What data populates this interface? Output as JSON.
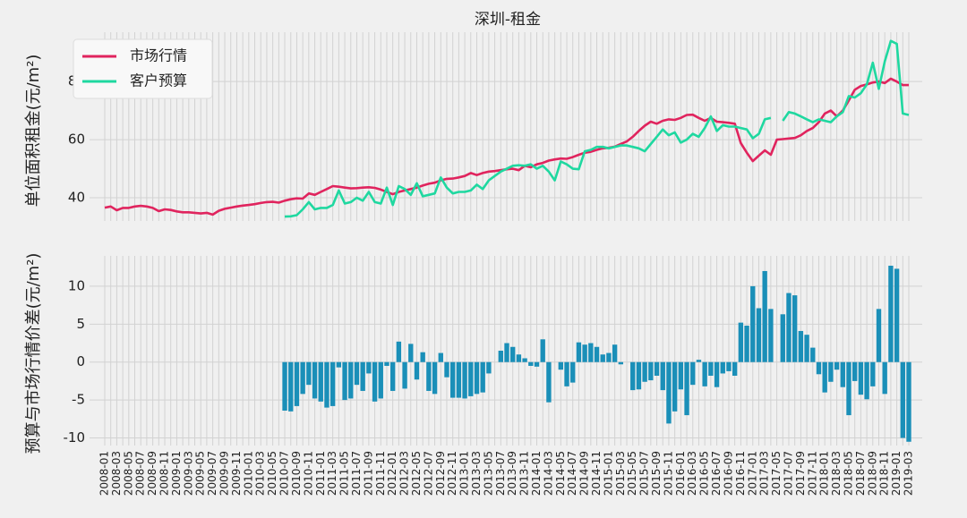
{
  "chart_data": [
    {
      "type": "line",
      "title": "深圳-租金",
      "ylabel": "单位面积租金(元/m²)",
      "ylim": [
        32,
        97
      ],
      "yticks": [
        40,
        60,
        80
      ],
      "grid": true,
      "legend": "upper left",
      "series": [
        {
          "name": "市场行情",
          "color": "#e0245e",
          "values": [
            36.6,
            37,
            35.7,
            36.5,
            36.5,
            37,
            37.2,
            37,
            36.5,
            35.4,
            36,
            35.8,
            35.3,
            35,
            35,
            34.8,
            34.6,
            34.8,
            34.2,
            35.5,
            36.2,
            36.6,
            37,
            37.3,
            37.5,
            37.8,
            38.2,
            38.5,
            38.6,
            38.3,
            39,
            39.5,
            39.8,
            39.7,
            41.5,
            41,
            42,
            43,
            44,
            43.8,
            43.5,
            43.2,
            43.3,
            43.5,
            43.6,
            43.4,
            42.8,
            42,
            41.2,
            42,
            42.5,
            43,
            43.5,
            44.2,
            44.8,
            45.2,
            46,
            46.5,
            46.6,
            47,
            47.5,
            48.5,
            47.8,
            48.5,
            49,
            49.2,
            49.5,
            49.8,
            50,
            49.5,
            51,
            50.5,
            51.5,
            52,
            52.8,
            53.2,
            53.5,
            53.4,
            54,
            54.8,
            55.5,
            55.8,
            56.5,
            57,
            57.2,
            57.6,
            58.5,
            59.4,
            61,
            63,
            64.8,
            66.2,
            65.5,
            66.5,
            67,
            66.8,
            67.5,
            68.5,
            68.6,
            67.5,
            66.5,
            67.5,
            66.2,
            66,
            65.8,
            65.5,
            58.8,
            55.5,
            52.6,
            54.5,
            56.3,
            54.8,
            60,
            60.2,
            60.4,
            60.6,
            61.5,
            63,
            64,
            66,
            69,
            70,
            68,
            70,
            73.5,
            77.2,
            78.5,
            79,
            79.7,
            80,
            79.5,
            81,
            80,
            78.8,
            78.8
          ]
        },
        {
          "name": "客户预算",
          "color": "#1fd8a0",
          "values": [
            null,
            null,
            null,
            null,
            null,
            null,
            null,
            null,
            null,
            null,
            null,
            null,
            null,
            null,
            null,
            null,
            null,
            null,
            null,
            null,
            null,
            null,
            null,
            null,
            null,
            null,
            null,
            null,
            null,
            null,
            33.5,
            33.6,
            34,
            36,
            38.5,
            36,
            36.5,
            36.5,
            37.5,
            42.5,
            38,
            38.5,
            40,
            39,
            42,
            38.5,
            38,
            43.5,
            37.5,
            44,
            43,
            41,
            45,
            40.5,
            41,
            41.5,
            47,
            43.5,
            41.5,
            42,
            42,
            42.5,
            44.5,
            43,
            46,
            47.5,
            49,
            50,
            51,
            51.2,
            51,
            51.5,
            50,
            51,
            49,
            46,
            52.5,
            51.5,
            50,
            49.8,
            56,
            56.5,
            57.5,
            57.5,
            57,
            57.5,
            58,
            58,
            57.5,
            57,
            56,
            58.5,
            61,
            63.5,
            61.5,
            62.5,
            59,
            60,
            62,
            61,
            64,
            68,
            63,
            65,
            64.5,
            64.5,
            64,
            63.5,
            60.5,
            62,
            67,
            67.5,
            null,
            66.5,
            69.5,
            69,
            68,
            67,
            66,
            67,
            66.5,
            66,
            68,
            69.5,
            75,
            74.5,
            76,
            79,
            86.5,
            77.5,
            87,
            94,
            93,
            69,
            68.5
          ]
        }
      ]
    },
    {
      "type": "bar",
      "ylabel": "预算与市场行情价差(元/m²)",
      "color": "#1a8fb8",
      "ylim": [
        -11,
        14
      ],
      "yticks": [
        -10,
        -5,
        0,
        5,
        10
      ],
      "grid": true,
      "categories": [
        "2008-01",
        null,
        "2008-03",
        null,
        "2008-05",
        null,
        "2008-07",
        null,
        "2008-09",
        null,
        "2008-11",
        null,
        "2009-01",
        null,
        "2009-03",
        null,
        "2009-05",
        null,
        "2009-07",
        null,
        "2009-09",
        null,
        "2009-11",
        null,
        "2010-01",
        null,
        "2010-03",
        null,
        "2010-05",
        null,
        "2010-07",
        null,
        "2010-09",
        null,
        "2010-11",
        null,
        "2011-01",
        null,
        "2011-03",
        null,
        "2011-05",
        null,
        "2011-07",
        null,
        "2011-09",
        null,
        "2011-11",
        null,
        "2012-01",
        null,
        "2012-03",
        null,
        "2012-05",
        null,
        "2012-07",
        null,
        "2012-09",
        null,
        "2012-11",
        null,
        "2013-01",
        null,
        "2013-03",
        null,
        "2013-05",
        null,
        "2013-07",
        null,
        "2013-09",
        null,
        "2013-11",
        null,
        "2014-01",
        null,
        "2014-03",
        null,
        "2014-05",
        null,
        "2014-07",
        null,
        "2014-09",
        null,
        "2014-11",
        null,
        "2015-01",
        null,
        "2015-03",
        null,
        "2015-05",
        null,
        "2015-07",
        null,
        "2015-09",
        null,
        "2015-11",
        null,
        "2016-01",
        null,
        "2016-03",
        null,
        "2016-05",
        null,
        "2016-07",
        null,
        "2016-09",
        null,
        "2016-11",
        null,
        "2017-01",
        null,
        "2017-03",
        null,
        "2017-05",
        null,
        "2017-07",
        null,
        "2017-09",
        null,
        "2017-11",
        null,
        "2018-01",
        null,
        "2018-03",
        null,
        "2018-05",
        null,
        "2018-07",
        null,
        "2018-09",
        null,
        "2018-11",
        null,
        "2019-01",
        null,
        "2019-03"
      ],
      "values": [
        null,
        null,
        null,
        null,
        null,
        null,
        null,
        null,
        null,
        null,
        null,
        null,
        null,
        null,
        null,
        null,
        null,
        null,
        null,
        null,
        null,
        null,
        null,
        null,
        null,
        null,
        null,
        null,
        null,
        null,
        -6.4,
        -6.5,
        -5.8,
        -4.2,
        -3,
        -4.8,
        -5.2,
        -6,
        -5.8,
        -0.7,
        -5,
        -4.8,
        -3,
        -3.8,
        -1.5,
        -5.2,
        -4.8,
        -0.5,
        -3.8,
        2.7,
        -3.5,
        2.4,
        -2.3,
        1.3,
        -3.8,
        -4.2,
        1.2,
        -2,
        -4.7,
        -4.7,
        -4.8,
        -4.5,
        -4.2,
        -4,
        -1.5,
        0,
        1.5,
        2.5,
        2,
        1,
        0.5,
        -0.5,
        -0.6,
        3,
        -5.3,
        0,
        -1,
        -3.2,
        -2.7,
        2.6,
        2.3,
        2.5,
        2,
        1,
        1.2,
        2.3,
        -0.3,
        0,
        -3.7,
        -3.6,
        -2.6,
        -2.4,
        -1.8,
        -3.7,
        -8.1,
        -6.5,
        -3.6,
        -7,
        -3,
        0.3,
        -3.2,
        -1.8,
        -3.3,
        -1.5,
        -1.2,
        -1.8,
        5.2,
        4.8,
        10,
        7.1,
        12,
        7,
        0,
        6.3,
        9.1,
        8.8,
        4.1,
        3.6,
        1.9,
        -1.6,
        -4,
        -2.6,
        -1,
        -3.3,
        -7,
        -2.5,
        -4.3,
        -4.9,
        -3.2,
        7,
        -4.2,
        12.7,
        12.3,
        -10,
        -10.5
      ]
    }
  ]
}
